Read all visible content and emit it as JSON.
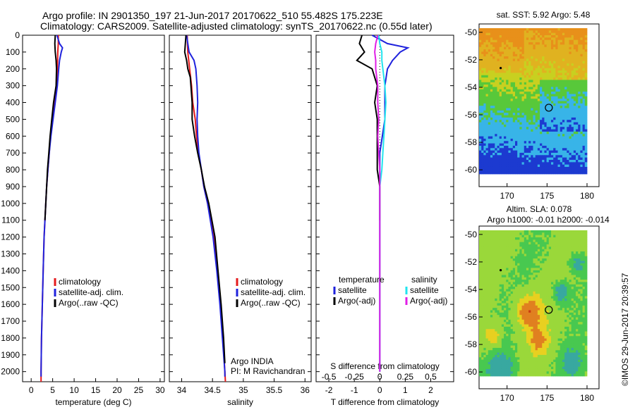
{
  "title": {
    "line1": "Argo profile: IN 2901350_197 21-Jun-2017 20170622_510 55.482S 175.223E",
    "line2": "Climatology: CARS2009. Satellite-adjusted climatology: synTS_20170622.nc (0.55d later)"
  },
  "footer": "©IMOS 29-Jun-2017 20:39:57",
  "colors": {
    "climatology": "#e41a1c",
    "satellite": "#1f22dd",
    "argo": "#000000",
    "sat_salinity": "#22e4ee",
    "argo_salinity": "#e01ee6"
  },
  "chart_data": [
    {
      "id": "temperature",
      "type": "line",
      "xlabel": "temperature (deg C)",
      "ylabel": "",
      "xlim": [
        -2,
        31
      ],
      "ylim": [
        2060,
        0
      ],
      "xticks": [
        0,
        5,
        10,
        15,
        20,
        25,
        30
      ],
      "yticks": [
        0,
        100,
        200,
        300,
        400,
        500,
        600,
        700,
        800,
        900,
        1000,
        1100,
        1200,
        1300,
        1400,
        1500,
        1600,
        1700,
        1800,
        1900,
        2000
      ],
      "legend": [
        "climatology",
        "satellite-adj. clim.",
        "Argo(..raw -QC)"
      ],
      "series": [
        {
          "name": "climatology",
          "depth": [
            0,
            50,
            100,
            200,
            300,
            400,
            500,
            600,
            700,
            800,
            900,
            1000,
            1200,
            1400,
            1600,
            1800,
            2000,
            2060
          ],
          "values": [
            6.3,
            6.3,
            6.2,
            6.1,
            5.9,
            5.4,
            4.9,
            4.5,
            4.2,
            3.9,
            3.6,
            3.4,
            3.0,
            2.8,
            2.6,
            2.4,
            2.3,
            2.3
          ]
        },
        {
          "name": "satellite-adj. clim.",
          "depth": [
            0,
            50,
            75,
            100,
            150,
            200,
            300,
            400,
            500,
            600,
            700,
            800,
            900,
            1000,
            1200,
            1400,
            1600,
            1800,
            2000,
            2030
          ],
          "values": [
            6.0,
            6.6,
            7.3,
            7.0,
            6.6,
            6.4,
            6.1,
            5.6,
            5.1,
            4.6,
            4.2,
            3.9,
            3.6,
            3.4,
            3.0,
            2.8,
            2.6,
            2.4,
            2.3,
            2.3
          ]
        },
        {
          "name": "Argo(..raw -QC)",
          "depth": [
            0,
            50,
            100,
            150,
            200,
            300,
            400,
            500,
            600,
            700,
            800,
            900,
            1000,
            1100
          ],
          "values": [
            5.6,
            5.5,
            5.6,
            5.8,
            5.9,
            5.8,
            5.2,
            4.8,
            4.4,
            4.1,
            3.8,
            3.6,
            3.4,
            3.2
          ]
        }
      ]
    },
    {
      "id": "salinity",
      "type": "line",
      "xlabel": "salinity",
      "ylabel": "",
      "xlim": [
        33.8,
        36.1
      ],
      "ylim": [
        2060,
        0
      ],
      "xticks": [
        34,
        34.5,
        35,
        35.5,
        36
      ],
      "legend": [
        "climatology",
        "satellite-adj. clim.",
        "Argo(..raw -QC)"
      ],
      "annotation": [
        "Argo INDIA",
        "PI: M Ravichandran"
      ],
      "series": [
        {
          "name": "climatology",
          "depth": [
            0,
            100,
            200,
            300,
            400,
            500,
            600,
            700,
            800,
            900,
            1000,
            1200,
            1400,
            1600,
            1800,
            2000,
            2060
          ],
          "values": [
            34.09,
            34.1,
            34.13,
            34.16,
            34.18,
            34.22,
            34.24,
            34.27,
            34.32,
            34.36,
            34.42,
            34.52,
            34.58,
            34.63,
            34.67,
            34.7,
            34.71
          ]
        },
        {
          "name": "satellite-adj. clim.",
          "depth": [
            0,
            50,
            100,
            150,
            200,
            300,
            400,
            500,
            600,
            700,
            800,
            900,
            1000,
            1200,
            1400,
            1600,
            1800,
            2000,
            2030
          ],
          "values": [
            34.08,
            34.1,
            34.12,
            34.2,
            34.23,
            34.25,
            34.26,
            34.25,
            34.26,
            34.28,
            34.32,
            34.36,
            34.42,
            34.51,
            34.57,
            34.62,
            34.66,
            34.7,
            34.7
          ]
        },
        {
          "name": "Argo(..raw -QC)",
          "depth": [
            0,
            50,
            100,
            150,
            200,
            250,
            300,
            400,
            500,
            600,
            700,
            800,
            900,
            1000,
            1200,
            1400,
            1600,
            1800,
            1950
          ],
          "values": [
            34.07,
            34.06,
            34.05,
            34.08,
            34.1,
            34.14,
            34.15,
            34.17,
            34.17,
            34.21,
            34.26,
            34.32,
            34.37,
            34.44,
            34.54,
            34.59,
            34.64,
            34.68,
            34.7
          ]
        }
      ]
    },
    {
      "id": "difference",
      "type": "line",
      "xlabel": "T difference from climatology",
      "xlabel2": "S difference from climatology",
      "xlim": [
        -2.5,
        2.9
      ],
      "ylim": [
        2060,
        0
      ],
      "xticks": [
        "-2",
        "-1",
        "0",
        "1",
        "2"
      ],
      "xticks2": [
        "-0.5",
        "-0.25",
        "0",
        "0.25",
        "0.5"
      ],
      "legend_headers": [
        "temperature",
        "salinity"
      ],
      "legend": [
        "satellite",
        "Argo(-adj)",
        "satellite",
        "Argo(-adj)"
      ],
      "series": [
        {
          "name": "T satellite",
          "depth": [
            0,
            50,
            75,
            100,
            150,
            200,
            300,
            400,
            500,
            600,
            700,
            800,
            900,
            1000,
            1200,
            1400,
            1600,
            1800,
            2000
          ],
          "values": [
            -0.3,
            0.3,
            1.1,
            0.8,
            0.5,
            0.3,
            0.2,
            0.2,
            0.2,
            0.1,
            0.0,
            0.0,
            0.0,
            0.0,
            0.0,
            0.0,
            0.0,
            0.0,
            0.0
          ]
        },
        {
          "name": "T Argo(-adj)",
          "depth": [
            0,
            50,
            100,
            150,
            200,
            300,
            400,
            500,
            600,
            700,
            800,
            900,
            1000,
            1100
          ],
          "values": [
            -0.7,
            -0.8,
            -0.6,
            -0.9,
            -0.3,
            -0.1,
            -0.2,
            -0.1,
            -0.1,
            -0.1,
            -0.1,
            0.0,
            0.0,
            0.0
          ]
        },
        {
          "name": "S satellite",
          "depth": [
            0,
            50,
            100,
            150,
            200,
            300,
            400,
            500,
            600,
            700,
            800,
            900,
            1000,
            1200,
            1400,
            1600,
            2000
          ],
          "values": [
            -0.01,
            0.0,
            0.02,
            0.02,
            0.03,
            0.05,
            0.06,
            0.05,
            0.04,
            0.03,
            0.02,
            0.0,
            0.0,
            0.0,
            0.0,
            0.0,
            0.0
          ]
        },
        {
          "name": "S Argo(-adj)",
          "depth": [
            0,
            50,
            100,
            150,
            200,
            300,
            400,
            500,
            600,
            700,
            800,
            900,
            1000,
            1200,
            1400,
            1600,
            1800,
            2000
          ],
          "values": [
            -0.02,
            -0.04,
            -0.05,
            -0.04,
            -0.04,
            -0.02,
            -0.02,
            -0.01,
            -0.02,
            -0.01,
            0.0,
            0.0,
            0.0,
            0.0,
            0.0,
            0.0,
            0.0,
            0.0
          ]
        }
      ]
    },
    {
      "id": "sst-map",
      "type": "heatmap",
      "title": "sat. SST: 5.92  Argo: 5.48",
      "xticks": [
        170,
        175,
        180
      ],
      "yticks": [
        -50,
        -52,
        -54,
        -56,
        -58,
        -60
      ],
      "xlim": [
        166.5,
        180
      ],
      "ylim": [
        -60.3,
        -49.7
      ],
      "argo_position": {
        "lon": 175.223,
        "lat": -55.482
      }
    },
    {
      "id": "sla-map",
      "type": "heatmap",
      "title": "Altim. SLA: 0.078",
      "title2": "Argo h1000: -0.01 h2000: -0.014",
      "xticks": [
        170,
        175,
        180
      ],
      "yticks": [
        -50,
        -52,
        -54,
        -56,
        -58,
        -60
      ],
      "xlim": [
        166.5,
        180
      ],
      "ylim": [
        -60.3,
        -49.7
      ],
      "argo_position": {
        "lon": 175.223,
        "lat": -55.482
      }
    }
  ]
}
